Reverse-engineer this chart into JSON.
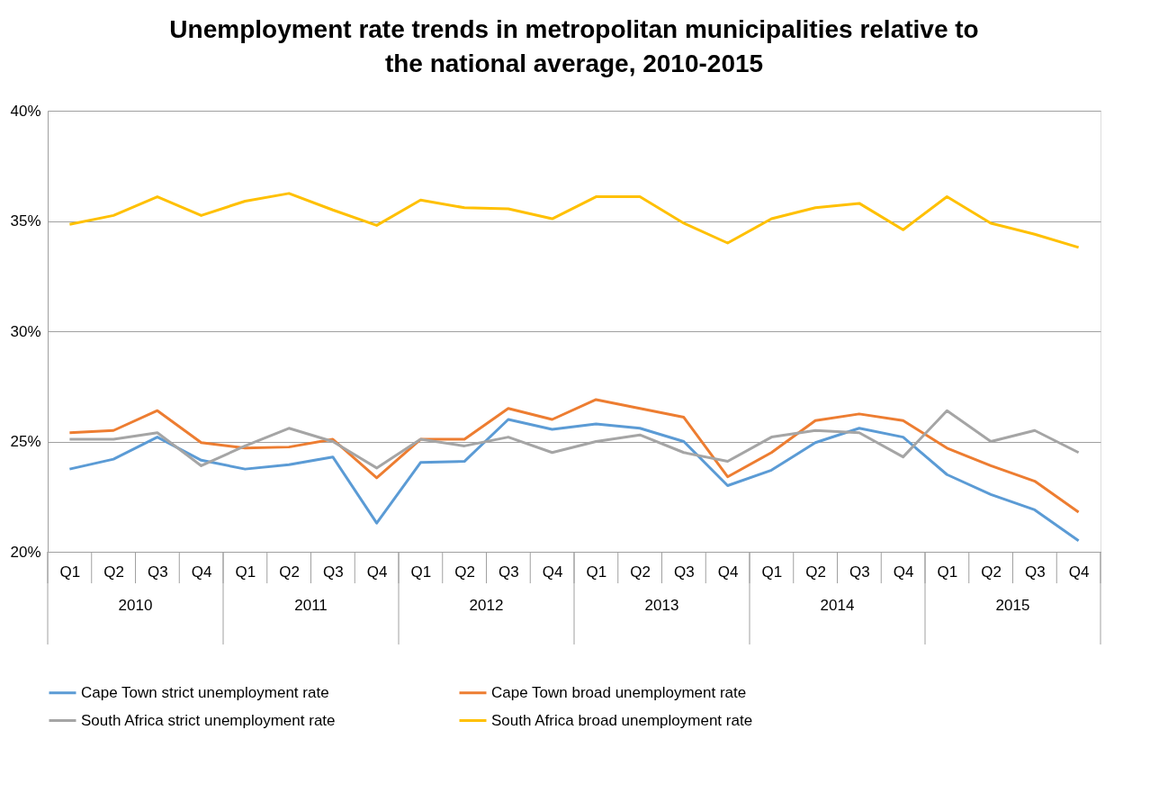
{
  "chart_data": {
    "type": "line",
    "title": "Unemployment rate trends in metropolitan municipalities relative to the national average, 2010-2015",
    "categories": [
      "Q1",
      "Q2",
      "Q3",
      "Q4",
      "Q1",
      "Q2",
      "Q3",
      "Q4",
      "Q1",
      "Q2",
      "Q3",
      "Q4",
      "Q1",
      "Q2",
      "Q3",
      "Q4",
      "Q1",
      "Q2",
      "Q3",
      "Q4",
      "Q1",
      "Q2",
      "Q3",
      "Q4"
    ],
    "annotations": [
      "2010",
      "2011",
      "2012",
      "2013",
      "2014",
      "2015"
    ],
    "series": [
      {
        "name": "Cape Town strict unemployment rate",
        "color": "#5b9bd5",
        "values": [
          23.75,
          24.2,
          25.2,
          24.15,
          23.75,
          23.95,
          24.3,
          21.3,
          24.05,
          24.1,
          26.0,
          25.55,
          25.8,
          25.6,
          25.0,
          23.0,
          23.7,
          24.95,
          25.6,
          25.2,
          23.5,
          22.6,
          21.9,
          20.5
        ]
      },
      {
        "name": "Cape Town broad unemployment rate",
        "color": "#ed7d31",
        "values": [
          25.4,
          25.5,
          26.4,
          24.95,
          24.7,
          24.75,
          25.1,
          23.35,
          25.1,
          25.1,
          26.5,
          26.0,
          26.9,
          26.5,
          26.1,
          23.4,
          24.5,
          25.95,
          26.25,
          25.95,
          24.7,
          23.9,
          23.2,
          21.8
        ]
      },
      {
        "name": "South Africa strict unemployment rate",
        "color": "#a5a5a5",
        "values": [
          25.1,
          25.1,
          25.4,
          23.9,
          24.8,
          25.6,
          25.0,
          23.8,
          25.1,
          24.8,
          25.2,
          24.5,
          25.0,
          25.3,
          24.5,
          24.1,
          25.2,
          25.5,
          25.4,
          24.3,
          26.4,
          25.0,
          25.5,
          24.5
        ]
      },
      {
        "name": "South Africa broad unemployment rate",
        "color": "#ffc000",
        "values": [
          34.85,
          35.25,
          36.1,
          35.25,
          35.9,
          36.25,
          35.5,
          34.8,
          35.95,
          35.6,
          35.55,
          35.1,
          36.1,
          36.1,
          34.9,
          34.0,
          35.1,
          35.6,
          35.8,
          34.6,
          36.1,
          34.9,
          34.4,
          33.8
        ]
      }
    ],
    "ylim": [
      20,
      40
    ],
    "yticks": [
      {
        "value": 20,
        "label": "20%"
      },
      {
        "value": 25,
        "label": "25%"
      },
      {
        "value": 30,
        "label": "30%"
      },
      {
        "value": 35,
        "label": "35%"
      },
      {
        "value": 40,
        "label": "40%"
      }
    ],
    "grid": "y",
    "legend": "bottom",
    "marker": "none",
    "line_style": "solid"
  }
}
